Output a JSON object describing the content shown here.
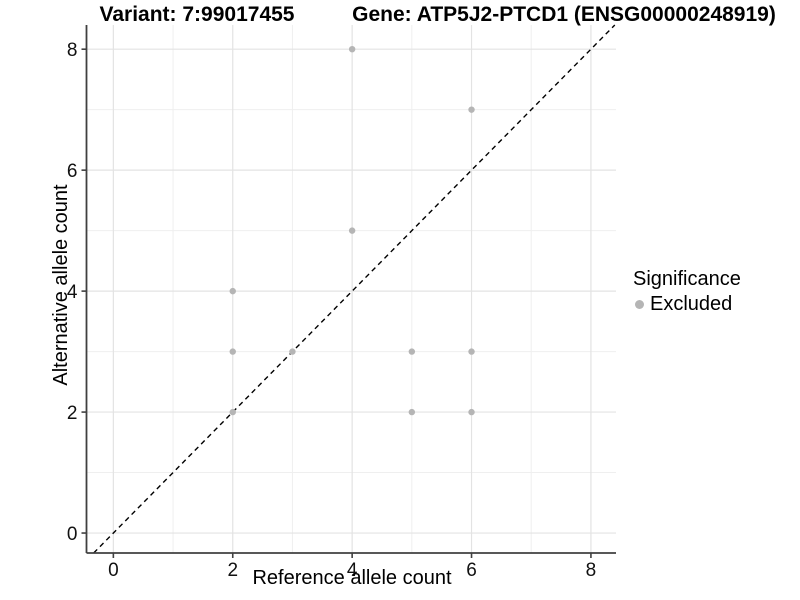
{
  "titles": {
    "left": "Variant: 7:99017455",
    "right": "Gene: ATP5J2-PTCD1 (ENSG00000248919)"
  },
  "axes": {
    "x_label": "Reference allele count",
    "y_label": "Alternative allele count"
  },
  "legend": {
    "title": "Significance",
    "entries": [
      {
        "label": "Excluded",
        "color": "#b5b5b5"
      }
    ]
  },
  "chart_data": {
    "type": "scatter",
    "title": "Variant: 7:99017455 — Gene: ATP5J2-PTCD1 (ENSG00000248919)",
    "xlabel": "Reference allele count",
    "ylabel": "Alternative allele count",
    "xlim": [
      -0.45,
      8.42
    ],
    "ylim": [
      -0.33,
      8.4
    ],
    "xticks": [
      0,
      2,
      4,
      6,
      8
    ],
    "yticks": [
      0,
      2,
      4,
      6,
      8
    ],
    "xminor": [
      1,
      3,
      5,
      7
    ],
    "yminor": [
      1,
      3,
      5,
      7
    ],
    "grid": true,
    "legend_position": "right",
    "series": [
      {
        "name": "Excluded",
        "color": "#b5b5b5",
        "marker": "circle",
        "points": [
          [
            4,
            8
          ],
          [
            6,
            7
          ],
          [
            4,
            5
          ],
          [
            2,
            4
          ],
          [
            2,
            3
          ],
          [
            3,
            3
          ],
          [
            5,
            3
          ],
          [
            6,
            3
          ],
          [
            2,
            2
          ],
          [
            5,
            2
          ],
          [
            6,
            2
          ]
        ]
      }
    ],
    "reference_line": {
      "slope": 1,
      "intercept": 0,
      "style": "dashed",
      "color": "#000000"
    }
  },
  "colors": {
    "background": "#ffffff",
    "grid_major": "#e3e3e3",
    "grid_minor": "#efefef",
    "axis_line": "#404040",
    "tick_text": "#111111",
    "point": "#b5b5b5"
  }
}
